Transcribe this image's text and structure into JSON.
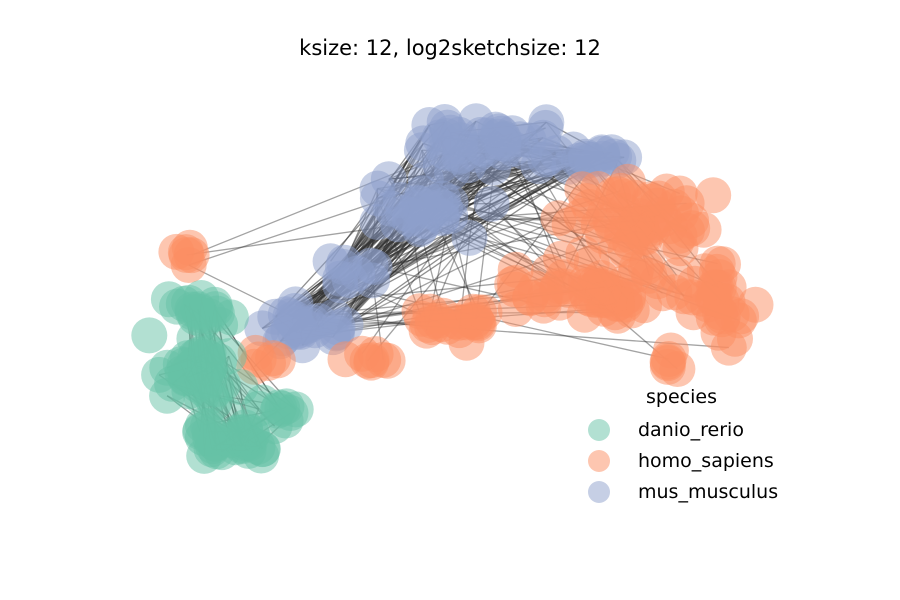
{
  "chart_data": {
    "type": "scatter",
    "subtype": "network-graph",
    "title": "ksize: 12, log2sketchsize: 12",
    "xlabel": "",
    "ylabel": "",
    "axes_visible": false,
    "grid": false,
    "legend": {
      "title": "species",
      "placement": "lower-right",
      "entries": [
        {
          "name": "danio_rerio",
          "color": "#66c2a5"
        },
        {
          "name": "homo_sapiens",
          "color": "#fc8d62"
        },
        {
          "name": "mus_musculus",
          "color": "#8da0cb"
        }
      ]
    },
    "node_alpha": 0.5,
    "edge_color": "#333333",
    "series": [
      {
        "name": "danio_rerio",
        "color": "#66c2a5"
      },
      {
        "name": "homo_sapiens",
        "color": "#fc8d62"
      },
      {
        "name": "mus_musculus",
        "color": "#8da0cb"
      }
    ]
  }
}
